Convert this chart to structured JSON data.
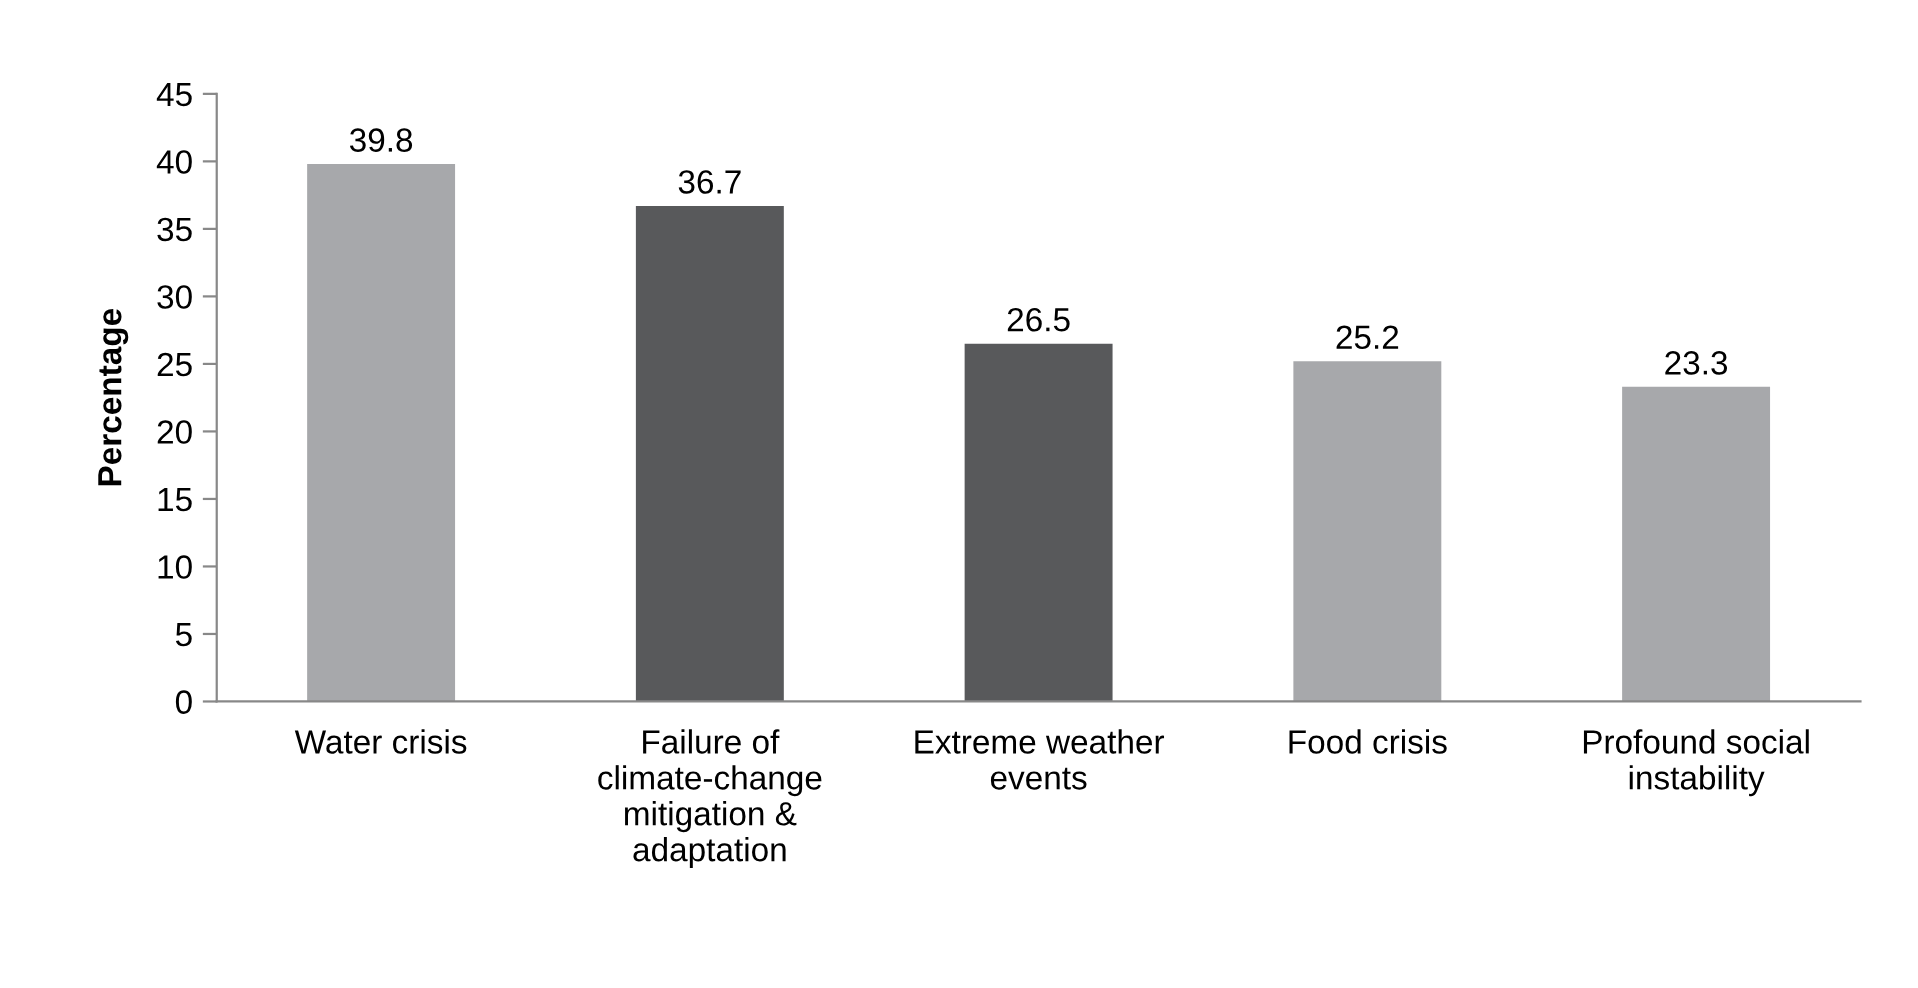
{
  "chart_data": {
    "type": "bar",
    "ylabel": "Percentage",
    "categories": [
      "Water crisis",
      "Failure of\nclimate-change\nmitigation &\nadaptation",
      "Extreme weather\nevents",
      "Food crisis",
      "Profound social\ninstability"
    ],
    "values": [
      39.8,
      36.7,
      26.5,
      25.2,
      23.3
    ],
    "colors": [
      "#a7a8ab",
      "#58595b",
      "#58595b",
      "#a7a8ab",
      "#a7a8ab"
    ],
    "ylim": [
      0,
      45
    ],
    "yticks": [
      0,
      5,
      10,
      15,
      20,
      25,
      30,
      35,
      40,
      45
    ],
    "grid": false,
    "data_labels": true
  }
}
